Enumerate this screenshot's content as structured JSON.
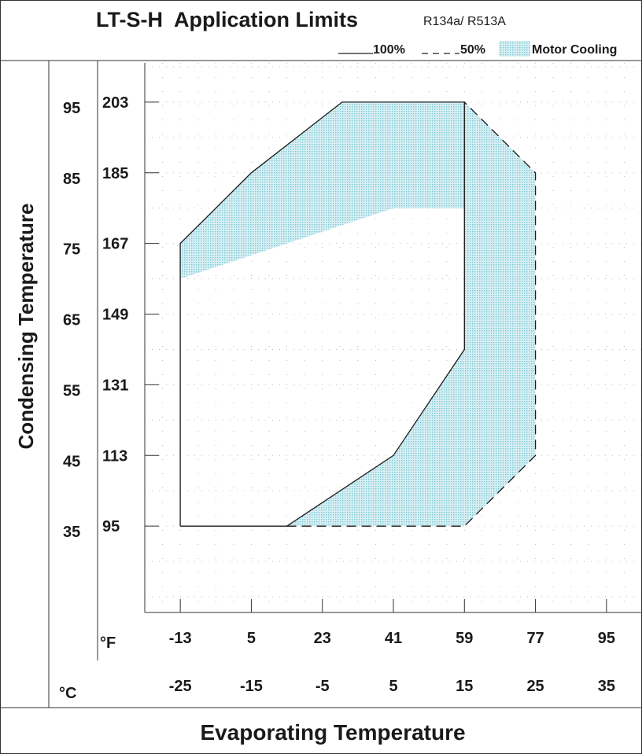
{
  "chart_data": {
    "type": "area",
    "title": "LT-S-H  Application Limits",
    "subtitle": "R134a/ R513A",
    "ylabel": "Condensing Temperature",
    "xlabel": "Evaporating Temperature",
    "x_unit_f": "°F",
    "x_unit_c": "°C",
    "x_ticks_f": [
      -13,
      5,
      23,
      41,
      59,
      77,
      95
    ],
    "x_ticks_c": [
      -25,
      -15,
      -5,
      5,
      15,
      25,
      35
    ],
    "y_ticks_f": [
      203,
      185,
      167,
      149,
      131,
      113,
      95
    ],
    "y_ticks_c": [
      95,
      85,
      75,
      65,
      55,
      45,
      35
    ],
    "xlim_f": [
      -22,
      104
    ],
    "ylim_f": [
      73,
      213
    ],
    "grid": "dotted",
    "legend": [
      {
        "label": "100%",
        "style": "solid"
      },
      {
        "label": "50%",
        "style": "dashed"
      },
      {
        "label": "Motor Cooling",
        "style": "fill",
        "color": "#a9dce6"
      }
    ],
    "series": [
      {
        "name": "100%",
        "style": "solid",
        "points": [
          [
            -13,
            95
          ],
          [
            14,
            95
          ],
          [
            41,
            113
          ],
          [
            59,
            140
          ],
          [
            59,
            203
          ],
          [
            28,
            203
          ],
          [
            5,
            185
          ],
          [
            -13,
            167
          ],
          [
            -13,
            95
          ]
        ]
      },
      {
        "name": "50%",
        "style": "dashed",
        "points": [
          [
            14,
            95
          ],
          [
            59,
            95
          ],
          [
            77,
            113
          ],
          [
            77,
            185
          ],
          [
            59,
            203
          ]
        ]
      },
      {
        "name": "Motor Cooling",
        "style": "fill",
        "color": "#a9dce6",
        "regions": [
          [
            [
              -13,
              167
            ],
            [
              5,
              185
            ],
            [
              28,
              203
            ],
            [
              59,
              203
            ],
            [
              59,
              176
            ],
            [
              41,
              176
            ],
            [
              -13,
              158
            ]
          ],
          [
            [
              59,
              203
            ],
            [
              77,
              185
            ],
            [
              77,
              113
            ],
            [
              59,
              95
            ],
            [
              14,
              95
            ],
            [
              41,
              113
            ],
            [
              59,
              140
            ]
          ]
        ]
      }
    ]
  }
}
